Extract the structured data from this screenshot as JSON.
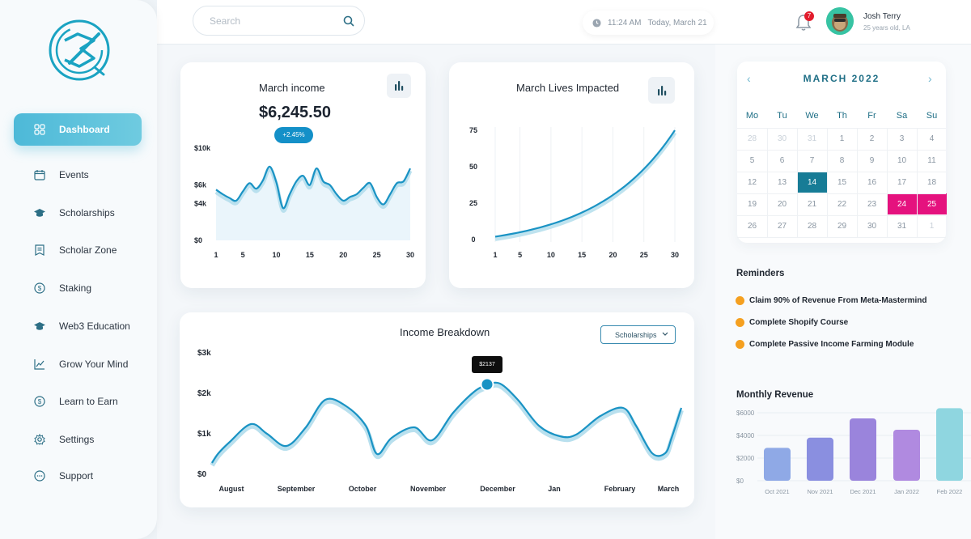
{
  "sidebar": {
    "items": [
      {
        "label": "Dashboard",
        "icon": "grid-icon",
        "active": true
      },
      {
        "label": "Events",
        "icon": "calendar-icon"
      },
      {
        "label": "Scholarships",
        "icon": "graduation-cap-icon"
      },
      {
        "label": "Scholar Zone",
        "icon": "document-icon"
      },
      {
        "label": "Staking",
        "icon": "dollar-circle-icon"
      },
      {
        "label": "Web3 Education",
        "icon": "graduation-cap-icon"
      },
      {
        "label": "Grow Your Mind",
        "icon": "trend-line-icon"
      },
      {
        "label": "Learn to Earn",
        "icon": "dollar-circle-icon"
      },
      {
        "label": "Settings",
        "icon": "gear-icon"
      },
      {
        "label": "Support",
        "icon": "chat-bubble-icon"
      }
    ]
  },
  "header": {
    "search_placeholder": "Search",
    "time": "11:24 AM",
    "date": "Today, March 21",
    "notifications": "7",
    "user_name": "Josh Terry",
    "user_sub": "25 years old, LA"
  },
  "income_card": {
    "title": "March income",
    "value": "$6,245.50",
    "change": "+2.45%"
  },
  "lives_card": {
    "title": "March Lives Impacted"
  },
  "breakdown_card": {
    "title": "Income Breakdown",
    "dropdown": "Scholarships",
    "tooltip": "$2137"
  },
  "calendar": {
    "title": "MARCH 2022",
    "days_of_week": [
      "Mo",
      "Tu",
      "We",
      "Th",
      "Fr",
      "Sa",
      "Su"
    ],
    "weeks": [
      [
        "28",
        "30",
        "31",
        "1",
        "2",
        "3",
        "4"
      ],
      [
        "5",
        "6",
        "7",
        "8",
        "9",
        "10",
        "11"
      ],
      [
        "12",
        "13",
        "14",
        "15",
        "16",
        "17",
        "18"
      ],
      [
        "19",
        "20",
        "21",
        "22",
        "23",
        "24",
        "25"
      ],
      [
        "26",
        "27",
        "28",
        "29",
        "30",
        "31",
        "1"
      ]
    ],
    "selected": "14",
    "highlighted": [
      "24",
      "25"
    ]
  },
  "reminders": {
    "title": "Reminders",
    "items": [
      "Claim 90% of Revenue From Meta-Mastermind",
      "Complete Shopify Course",
      "Complete Passive Income Farming Module"
    ]
  },
  "monthly_revenue": {
    "title": "Monthly Revenue"
  },
  "chart_data": [
    {
      "type": "area",
      "title": "March income",
      "x": [
        1,
        2,
        3,
        4,
        5,
        6,
        7,
        8,
        9,
        10,
        11,
        12,
        13,
        14,
        15,
        16,
        17,
        18,
        19,
        20,
        21,
        22,
        23,
        24,
        25,
        26,
        27,
        28,
        29,
        30
      ],
      "values": [
        5.5,
        5.0,
        4.6,
        4.3,
        5.3,
        6.2,
        5.6,
        6.5,
        8.0,
        6.3,
        3.5,
        5.0,
        6.4,
        7.0,
        6.0,
        7.8,
        6.4,
        6.0,
        5.0,
        4.3,
        4.7,
        5.0,
        5.7,
        6.2,
        4.7,
        3.9,
        5.0,
        6.2,
        6.4,
        7.8
      ],
      "x_ticks": [
        "1",
        "5",
        "10",
        "15",
        "20",
        "25",
        "30"
      ],
      "y_ticks": [
        "$0",
        "$4k",
        "$6k",
        "$10k"
      ],
      "ylim": [
        0,
        10
      ]
    },
    {
      "type": "line",
      "title": "March Lives Impacted",
      "x": [
        1,
        5,
        10,
        15,
        20,
        25,
        30
      ],
      "values": [
        2,
        7,
        13,
        20,
        31,
        48,
        75
      ],
      "x_ticks": [
        "1",
        "5",
        "10",
        "15",
        "20",
        "25",
        "30"
      ],
      "y_ticks": [
        "0",
        "25",
        "50",
        "75"
      ],
      "ylim": [
        0,
        75
      ]
    },
    {
      "type": "line",
      "title": "Income Breakdown",
      "categories": [
        "August",
        "September",
        "October",
        "November",
        "December",
        "Jan",
        "February",
        "March"
      ],
      "values": [
        100,
        1900,
        300,
        700,
        2137,
        1000,
        1700,
        1500
      ],
      "y_ticks": [
        "$0",
        "$1k",
        "$2k",
        "$3k"
      ],
      "ylim": [
        0,
        3000
      ]
    },
    {
      "type": "bar",
      "title": "Monthly Revenue",
      "categories": [
        "Oct 2021",
        "Nov 2021",
        "Dec 2021",
        "Jan 2022",
        "Feb 2022"
      ],
      "values": [
        2900,
        3800,
        5500,
        4500,
        6400
      ],
      "y_ticks": [
        "$0",
        "$2000",
        "$4000",
        "$6000"
      ],
      "ylim": [
        0,
        6500
      ],
      "colors": [
        "#8fa9e6",
        "#8a8fe0",
        "#9a84dc",
        "#b08ae0",
        "#8fd6e0"
      ]
    }
  ]
}
